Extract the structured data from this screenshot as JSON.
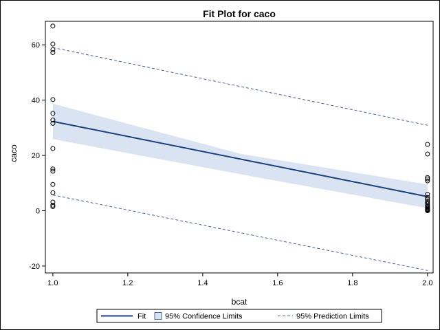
{
  "chart_data": {
    "type": "scatter",
    "title": "Fit Plot for caco",
    "xlabel": "bcat",
    "ylabel": "caco",
    "xlim": [
      0.98,
      2.015
    ],
    "ylim": [
      -22.5,
      68.5
    ],
    "xticks": [
      1.0,
      1.2,
      1.4,
      1.6,
      1.8,
      2.0
    ],
    "xtick_labels": [
      "1.0",
      "1.2",
      "1.4",
      "1.6",
      "1.8",
      "2.0"
    ],
    "yticks": [
      -20,
      0,
      20,
      40,
      60
    ],
    "ytick_labels": [
      "-20",
      "0",
      "20",
      "40",
      "60"
    ],
    "grid": false,
    "legend_position": "bottom",
    "fit": {
      "x": [
        1.0,
        2.0
      ],
      "y": [
        32.3,
        5.1
      ]
    },
    "confidence_limits": {
      "x": [
        1.0,
        1.5,
        2.0
      ],
      "lower": [
        25.9,
        13.2,
        0.9
      ],
      "upper": [
        38.7,
        20.6,
        9.5
      ]
    },
    "prediction_limits": {
      "x": [
        1.0,
        2.0
      ],
      "lower": [
        5.7,
        -21.6
      ],
      "upper": [
        59.0,
        30.9
      ]
    },
    "observations": {
      "x": [
        1,
        1,
        1,
        1,
        1,
        1,
        1,
        1,
        1,
        1,
        1,
        1,
        1,
        1,
        1,
        1,
        2,
        2,
        2,
        2,
        2,
        2,
        2,
        2,
        2,
        2,
        2,
        2,
        2,
        2,
        2,
        2,
        2,
        2,
        2,
        2
      ],
      "y": [
        66.8,
        60.3,
        58.2,
        57.2,
        40.2,
        35.2,
        32.8,
        31.6,
        22.5,
        15.1,
        14.3,
        9.5,
        6.5,
        3.1,
        2.0,
        1.5,
        24.0,
        20.5,
        12.0,
        11.5,
        10.8,
        5.9,
        4.8,
        4.1,
        3.5,
        3.0,
        2.5,
        2.0,
        1.6,
        1.2,
        0.9,
        0.6,
        0.4,
        0.2,
        0.1,
        0.0
      ]
    },
    "legend": [
      {
        "label": "Fit",
        "kind": "line"
      },
      {
        "label": "95% Confidence Limits",
        "kind": "band"
      },
      {
        "label": "95% Prediction Limits",
        "kind": "dashed"
      }
    ],
    "colors": {
      "fit": "#1c3f7c",
      "band": "#d9e3f2",
      "prediction": "#4d5f8f",
      "marker": "#000000"
    }
  }
}
